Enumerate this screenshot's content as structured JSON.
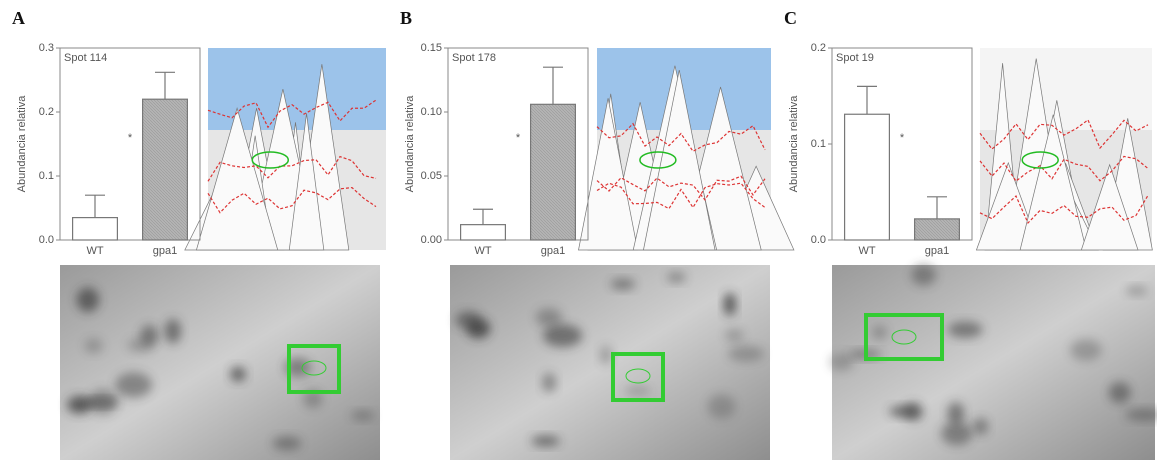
{
  "chart_data": [
    {
      "type": "bar",
      "title": "A",
      "subtitle": "Spot 114",
      "ylabel": "Abundancia relativa",
      "annotation": "*",
      "categories": [
        "WT",
        "gpa1"
      ],
      "values": [
        0.035,
        0.22
      ],
      "errors": [
        0.035,
        0.042
      ],
      "colors": [
        "#ffffff",
        "#b4b4b4"
      ],
      "ylim": [
        0,
        0.3
      ],
      "yticks": [
        {
          "value": 0,
          "label": "0.0"
        },
        0.1,
        0.2,
        0.3
      ]
    },
    {
      "type": "bar",
      "title": "B",
      "subtitle": "Spot 178",
      "ylabel": "Abundancia relativa",
      "annotation": "*",
      "categories": [
        "WT",
        "gpa1"
      ],
      "values": [
        0.012,
        0.106
      ],
      "errors": [
        0.012,
        0.029
      ],
      "colors": [
        "#ffffff",
        "#b4b4b4"
      ],
      "ylim": [
        0,
        0.15
      ],
      "yticks": [
        {
          "value": 0,
          "label": "0.00"
        },
        0.05,
        {
          "value": 0.1,
          "label": "0.10"
        },
        0.15
      ]
    },
    {
      "type": "bar",
      "title": "C",
      "subtitle": "Spot 19",
      "ylabel": "Abundancia relativa",
      "annotation": "*",
      "categories": [
        "WT",
        "gpa1"
      ],
      "values": [
        0.131,
        0.022
      ],
      "errors": [
        0.029,
        0.023
      ],
      "colors": [
        "#ffffff",
        "#b4b4b4"
      ],
      "ylim": [
        0,
        0.2
      ],
      "yticks": [
        {
          "value": 0,
          "label": "0.0"
        },
        0.1,
        0.2
      ]
    }
  ]
}
